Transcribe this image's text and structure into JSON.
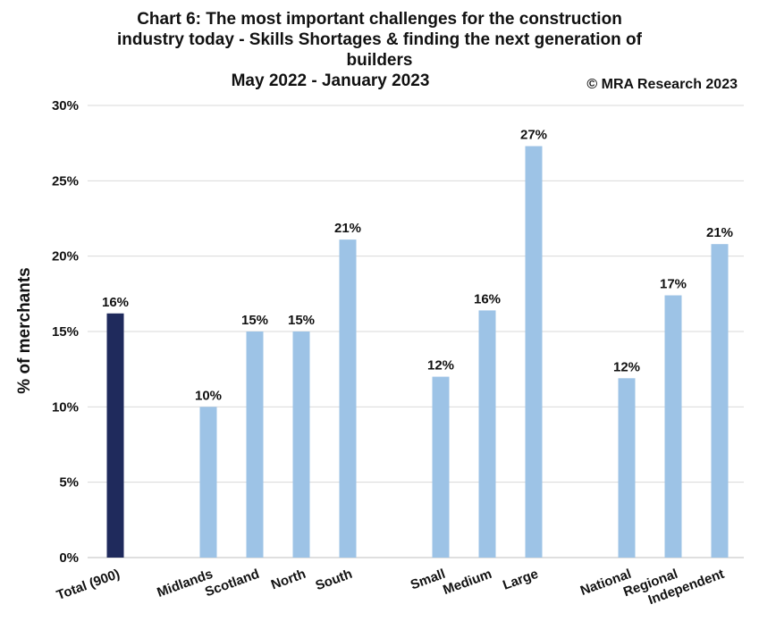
{
  "title_lines": [
    "Chart 6: The most important challenges for the construction",
    "industry today - Skills Shortages & finding the next generation of",
    "builders",
    "May 2022 - January 2023"
  ],
  "copyright": "© MRA Research 2023",
  "chart_data": {
    "type": "bar",
    "title": "Chart 6: The most important challenges for the construction industry today - Skills Shortages & finding the next generation of builders",
    "subtitle": "May 2022 - January 2023",
    "xlabel": "",
    "ylabel": "% of merchants",
    "ylim": [
      0,
      30
    ],
    "yticks": [
      "0%",
      "5%",
      "10%",
      "15%",
      "20%",
      "25%",
      "30%"
    ],
    "grid": true,
    "categories": [
      "Total (900)",
      "Midlands",
      "Scotland",
      "North",
      "South",
      "Small",
      "Medium",
      "Large",
      "National",
      "Regional",
      "Independent"
    ],
    "groups": [
      [
        "Total (900)"
      ],
      [
        "Midlands",
        "Scotland",
        "North",
        "South"
      ],
      [
        "Small",
        "Medium",
        "Large"
      ],
      [
        "National",
        "Regional",
        "Independent"
      ]
    ],
    "values": [
      16.2,
      10.0,
      15.0,
      15.0,
      21.1,
      12.0,
      16.4,
      27.3,
      11.9,
      17.4,
      20.8
    ],
    "value_labels": [
      "16%",
      "10%",
      "15%",
      "15%",
      "21%",
      "12%",
      "16%",
      "27%",
      "12%",
      "17%",
      "21%"
    ],
    "colors": {
      "total": "#1f2a5c",
      "other": "#9dc3e6",
      "grid": "#d9d9d9",
      "axis": "#bfbfbf"
    }
  }
}
